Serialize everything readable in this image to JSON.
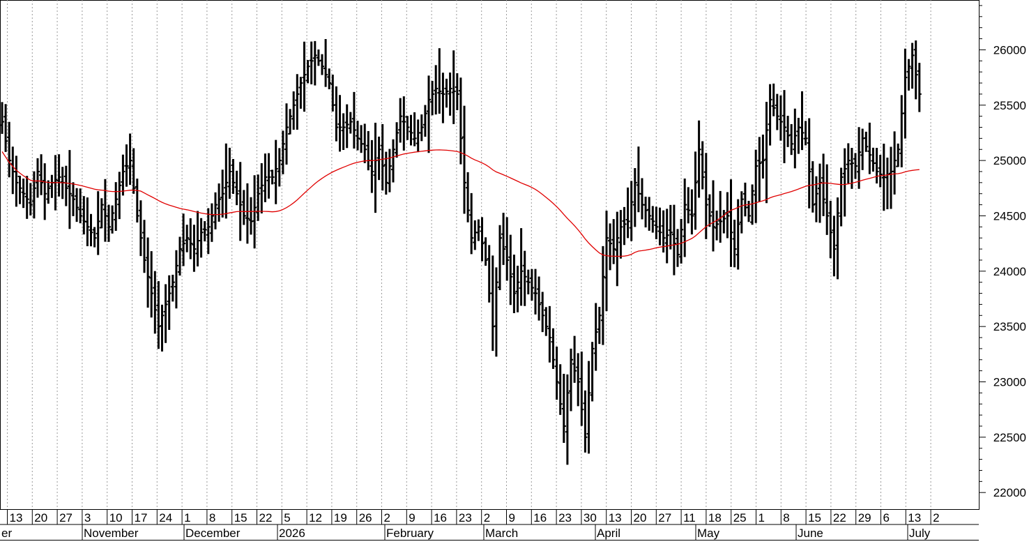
{
  "chart_data": {
    "type": "ohlc",
    "title": "",
    "xlabel": "",
    "ylabel": "",
    "ylim": [
      21850,
      26450
    ],
    "y_ticks": [
      22000,
      22500,
      23000,
      23500,
      24000,
      24500,
      25000,
      25500,
      26000
    ],
    "grid": "vertical dotted gridlines at each week",
    "colors": {
      "bars": "#000000",
      "moving_average": "#e00000",
      "grid": "#9a9a9a",
      "axis": "#000000"
    },
    "week_labels": [
      "13",
      "20",
      "27",
      "3",
      "10",
      "17",
      "24",
      "1",
      "8",
      "15",
      "22",
      "5",
      "12",
      "19",
      "26",
      "2",
      "9",
      "16",
      "23",
      "2",
      "9",
      "16",
      "23",
      "30",
      "13",
      "20",
      "27",
      "11",
      "18",
      "25",
      "1",
      "8",
      "15",
      "22",
      "29",
      "6",
      "13",
      "2"
    ],
    "month_labels": [
      "er",
      "November",
      "December",
      "2026",
      "February",
      "March",
      "April",
      "May",
      "June",
      "July"
    ],
    "anchors": [
      [
        0,
        25350
      ],
      [
        2,
        25000
      ],
      [
        4,
        24800
      ],
      [
        6,
        24700
      ],
      [
        8,
        24600
      ],
      [
        10,
        24900
      ],
      [
        12,
        24700
      ],
      [
        14,
        24800
      ],
      [
        16,
        24850
      ],
      [
        18,
        24750
      ],
      [
        20,
        24650
      ],
      [
        22,
        24500
      ],
      [
        24,
        24400
      ],
      [
        26,
        24300
      ],
      [
        28,
        24600
      ],
      [
        30,
        24400
      ],
      [
        32,
        24650
      ],
      [
        34,
        24900
      ],
      [
        36,
        25000
      ],
      [
        38,
        24500
      ],
      [
        40,
        24100
      ],
      [
        42,
        23800
      ],
      [
        44,
        23500
      ],
      [
        46,
        23700
      ],
      [
        48,
        23900
      ],
      [
        50,
        24200
      ],
      [
        52,
        24300
      ],
      [
        54,
        24200
      ],
      [
        56,
        24350
      ],
      [
        58,
        24400
      ],
      [
        60,
        24600
      ],
      [
        62,
        24700
      ],
      [
        64,
        24900
      ],
      [
        66,
        24700
      ],
      [
        68,
        24500
      ],
      [
        70,
        24450
      ],
      [
        72,
        24700
      ],
      [
        74,
        24850
      ],
      [
        76,
        24850
      ],
      [
        78,
        25000
      ],
      [
        80,
        25300
      ],
      [
        82,
        25500
      ],
      [
        84,
        25700
      ],
      [
        86,
        25850
      ],
      [
        88,
        25950
      ],
      [
        90,
        25850
      ],
      [
        92,
        25700
      ],
      [
        94,
        25300
      ],
      [
        96,
        25300
      ],
      [
        98,
        25350
      ],
      [
        100,
        25200
      ],
      [
        102,
        25100
      ],
      [
        104,
        24900
      ],
      [
        106,
        25100
      ],
      [
        108,
        24800
      ],
      [
        110,
        25100
      ],
      [
        112,
        25400
      ],
      [
        114,
        25300
      ],
      [
        116,
        25200
      ],
      [
        118,
        25300
      ],
      [
        120,
        25550
      ],
      [
        122,
        25650
      ],
      [
        124,
        25600
      ],
      [
        126,
        25650
      ],
      [
        128,
        25600
      ],
      [
        130,
        24800
      ],
      [
        132,
        24300
      ],
      [
        134,
        24400
      ],
      [
        136,
        24100
      ],
      [
        138,
        23500
      ],
      [
        140,
        24300
      ],
      [
        142,
        24100
      ],
      [
        144,
        23800
      ],
      [
        146,
        24000
      ],
      [
        148,
        23900
      ],
      [
        150,
        23800
      ],
      [
        152,
        23600
      ],
      [
        154,
        23400
      ],
      [
        156,
        23000
      ],
      [
        158,
        22600
      ],
      [
        160,
        23200
      ],
      [
        162,
        23000
      ],
      [
        164,
        22500
      ],
      [
        166,
        23300
      ],
      [
        168,
        23600
      ],
      [
        170,
        24300
      ],
      [
        172,
        24200
      ],
      [
        174,
        24400
      ],
      [
        176,
        24450
      ],
      [
        178,
        24800
      ],
      [
        180,
        24600
      ],
      [
        182,
        24500
      ],
      [
        184,
        24400
      ],
      [
        186,
        24300
      ],
      [
        188,
        24350
      ],
      [
        190,
        24150
      ],
      [
        192,
        24600
      ],
      [
        194,
        24500
      ],
      [
        196,
        25100
      ],
      [
        198,
        24600
      ],
      [
        200,
        24400
      ],
      [
        202,
        24450
      ],
      [
        204,
        24500
      ],
      [
        206,
        24200
      ],
      [
        208,
        24650
      ],
      [
        210,
        24500
      ],
      [
        212,
        24950
      ],
      [
        214,
        25000
      ],
      [
        216,
        25550
      ],
      [
        218,
        25400
      ],
      [
        220,
        25300
      ],
      [
        222,
        25150
      ],
      [
        224,
        25300
      ],
      [
        226,
        25200
      ],
      [
        228,
        24600
      ],
      [
        230,
        24800
      ],
      [
        232,
        24500
      ],
      [
        234,
        24200
      ],
      [
        236,
        24850
      ],
      [
        238,
        25000
      ],
      [
        240,
        24950
      ],
      [
        242,
        25200
      ],
      [
        244,
        25050
      ],
      [
        246,
        24900
      ],
      [
        248,
        24850
      ],
      [
        250,
        24900
      ],
      [
        252,
        25100
      ],
      [
        254,
        25750
      ],
      [
        256,
        25950
      ],
      [
        258,
        25600
      ]
    ]
  }
}
